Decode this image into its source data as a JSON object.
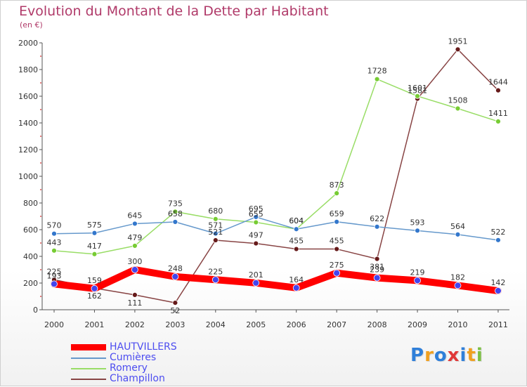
{
  "chart_data": {
    "type": "line",
    "title": "Evolution du Montant de la Dette par Habitant",
    "subtitle": "(en €)",
    "x": [
      "2000",
      "2001",
      "2002",
      "2003",
      "2004",
      "2005",
      "2006",
      "2007",
      "2008",
      "2009",
      "2010",
      "2011"
    ],
    "ylim": [
      0,
      2000
    ],
    "yticks": [
      0,
      200,
      400,
      600,
      800,
      1000,
      1200,
      1400,
      1600,
      1800,
      2000
    ],
    "grid": false,
    "legend_position": "bottom-left",
    "series": [
      {
        "name": "HAUTVILLERS",
        "color": "#ff0000",
        "marker_color": "#4444ee",
        "values": [
          193,
          159,
          300,
          248,
          225,
          201,
          164,
          275,
          239,
          219,
          182,
          142
        ]
      },
      {
        "name": "Cumières",
        "color": "#6699cc",
        "marker_color": "#3377cc",
        "values": [
          570,
          575,
          645,
          658,
          571,
          695,
          604,
          659,
          622,
          593,
          564,
          522
        ]
      },
      {
        "name": "Romery",
        "color": "#99dd66",
        "marker_color": "#77cc33",
        "values": [
          443,
          417,
          479,
          735,
          680,
          655,
          604,
          873,
          1728,
          1601,
          1508,
          1411
        ]
      },
      {
        "name": "Champillon",
        "color": "#884444",
        "marker_color": "#661a1a",
        "values": [
          225,
          162,
          111,
          52,
          521,
          497,
          455,
          455,
          381,
          1581,
          1951,
          1644
        ]
      }
    ]
  },
  "brand": {
    "letters": [
      "P",
      "r",
      "o",
      "x",
      "i",
      "t",
      "i"
    ],
    "colors": [
      "#2f7fd9",
      "#f0a020",
      "#2f7fd9",
      "#e03838",
      "#2f7fd9",
      "#f0a020",
      "#7cc043"
    ]
  }
}
